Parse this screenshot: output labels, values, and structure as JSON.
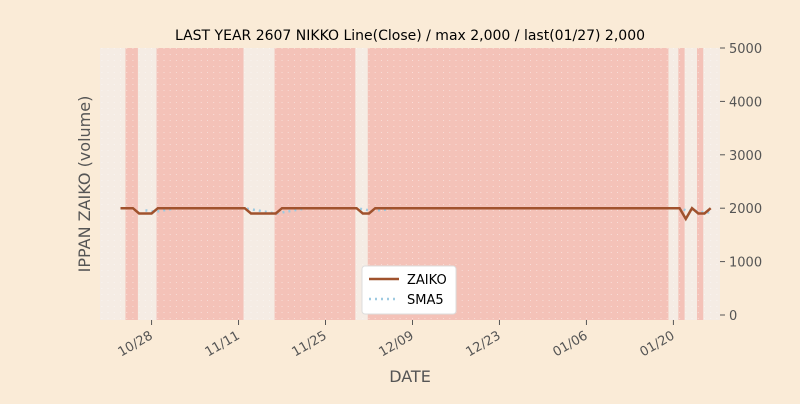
{
  "chart_data": {
    "type": "line",
    "title": "LAST YEAR 2607 NIKKO Line(Close) / max 2,000 / last(01/27) 2,000",
    "xlabel": "DATE",
    "ylabel": "IPPAN ZAIKO (volume)",
    "ylim": [
      0,
      5000
    ],
    "y_axis_position": "right",
    "yticks": [
      0,
      1000,
      2000,
      3000,
      4000,
      5000
    ],
    "xtick_labels": [
      "10/28",
      "11/11",
      "11/25",
      "12/09",
      "12/23",
      "01/06",
      "01/20"
    ],
    "xtick_days": [
      5,
      19,
      33,
      47,
      61,
      75,
      89
    ],
    "x_days": [
      0,
      1,
      2,
      3,
      4,
      5,
      6,
      7,
      8,
      9,
      10,
      11,
      12,
      13,
      14,
      15,
      16,
      17,
      18,
      19,
      20,
      21,
      22,
      23,
      24,
      25,
      26,
      27,
      28,
      29,
      30,
      31,
      32,
      33,
      34,
      35,
      36,
      37,
      38,
      39,
      40,
      41,
      42,
      43,
      44,
      45,
      46,
      47,
      48,
      49,
      50,
      51,
      52,
      53,
      54,
      55,
      56,
      57,
      58,
      59,
      60,
      61,
      62,
      63,
      64,
      65,
      66,
      67,
      67,
      68,
      69,
      70,
      71,
      72,
      73,
      74,
      75,
      76,
      77,
      78,
      79,
      80,
      81,
      82,
      83,
      84,
      85,
      86,
      87,
      88,
      89,
      90,
      91,
      92,
      93,
      94,
      95
    ],
    "series": [
      {
        "name": "ZAIKO",
        "color": "#a0522d",
        "style": "solid",
        "values": [
          2000,
          2000,
          2000,
          1900,
          1900,
          1900,
          2000,
          2000,
          2000,
          2000,
          2000,
          2000,
          2000,
          2000,
          2000,
          2000,
          2000,
          2000,
          2000,
          2000,
          2000,
          1900,
          1900,
          1900,
          1900,
          1900,
          2000,
          2000,
          2000,
          2000,
          2000,
          2000,
          2000,
          2000,
          2000,
          2000,
          2000,
          2000,
          2000,
          1900,
          1900,
          2000,
          2000,
          2000,
          2000,
          2000,
          2000,
          2000,
          2000,
          2000,
          2000,
          2000,
          2000,
          2000,
          2000,
          2000,
          2000,
          2000,
          2000,
          2000,
          2000,
          2000,
          2000,
          2000,
          2000,
          2000,
          2000,
          2000,
          2000,
          2000,
          2000,
          2000,
          2000,
          2000,
          2000,
          2000,
          2000,
          2000,
          2000,
          2000,
          2000,
          2000,
          2000,
          2000,
          2000,
          2000,
          2000,
          2000,
          2000,
          2000,
          2000,
          2000,
          1800,
          2000,
          1900,
          1900,
          2000
        ]
      },
      {
        "name": "SMA5",
        "color": "#9ecae1",
        "style": "dotted",
        "values": [
          null,
          null,
          null,
          null,
          1960,
          1940,
          1940,
          1960,
          1980,
          2000,
          2000,
          2000,
          2000,
          2000,
          2000,
          2000,
          2000,
          2000,
          2000,
          2000,
          2000,
          1980,
          1960,
          1940,
          1920,
          1900,
          1920,
          1940,
          1960,
          1980,
          2000,
          2000,
          2000,
          2000,
          2000,
          2000,
          2000,
          2000,
          2000,
          1980,
          1960,
          1960,
          1960,
          1980,
          2000,
          2000,
          2000,
          2000,
          2000,
          2000,
          2000,
          2000,
          2000,
          2000,
          2000,
          2000,
          2000,
          2000,
          2000,
          2000,
          2000,
          2000,
          2000,
          2000,
          2000,
          2000,
          2000,
          2000,
          2000,
          2000,
          2000,
          2000,
          2000,
          2000,
          2000,
          2000,
          2000,
          2000,
          2000,
          2000,
          2000,
          2000,
          2000,
          2000,
          2000,
          2000,
          2000,
          2000,
          2000,
          2000,
          2000,
          2000,
          1960,
          1960,
          1940,
          1920,
          1920
        ]
      }
    ],
    "shaded_bands_days": [
      [
        0.8,
        2.8
      ],
      [
        5.8,
        19.8
      ],
      [
        24.8,
        37.8
      ],
      [
        39.8,
        88.2
      ],
      [
        89.8,
        90.8
      ],
      [
        92.8,
        93.8
      ]
    ],
    "shade_color": "#f4c2b8",
    "legend_position": "bottom-center",
    "grid": false
  }
}
